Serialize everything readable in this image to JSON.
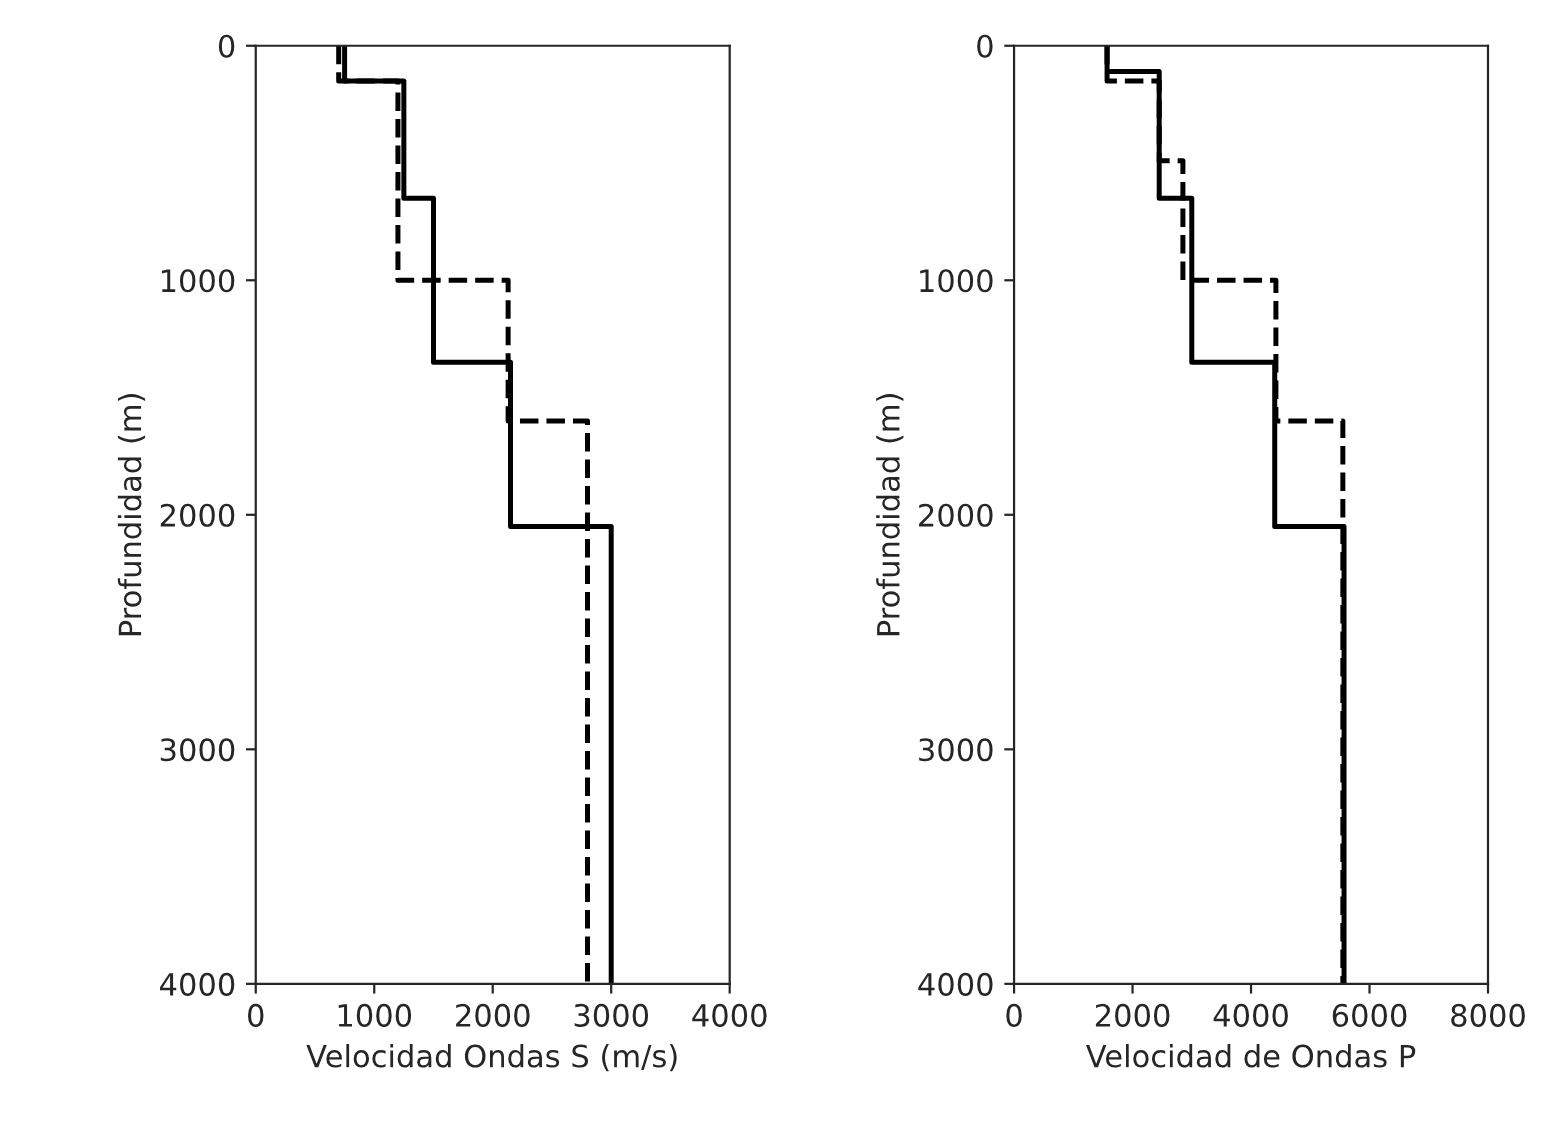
{
  "chart_data": [
    {
      "type": "line",
      "xlabel": "Velocidad Ondas S (m/s)",
      "ylabel": "Profundidad (m)",
      "xlim": [
        0,
        4000
      ],
      "xticks": [
        0,
        1000,
        2000,
        3000,
        4000
      ],
      "ylim": [
        4000,
        0
      ],
      "yticks": [
        0,
        1000,
        2000,
        3000,
        4000
      ],
      "grid": false,
      "marker": "none",
      "series": [
        {
          "color": "#000000",
          "line_style": "solid",
          "x": [
            750,
            750,
            1250,
            1250,
            1500,
            1500,
            2150,
            2150,
            3000,
            3000
          ],
          "values": [
            0,
            150,
            150,
            650,
            650,
            1350,
            1350,
            2050,
            2050,
            4000
          ]
        },
        {
          "color": "#000000",
          "line_style": "dashed",
          "x": [
            700,
            700,
            1200,
            1200,
            2130,
            2130,
            2800,
            2800
          ],
          "values": [
            0,
            150,
            150,
            1000,
            1000,
            1600,
            1600,
            4000
          ]
        }
      ]
    },
    {
      "type": "line",
      "xlabel": "Velocidad de Ondas P",
      "ylabel": "Profundidad (m)",
      "xlim": [
        0,
        8000
      ],
      "xticks": [
        0,
        2000,
        4000,
        6000,
        8000
      ],
      "ylim": [
        4000,
        0
      ],
      "yticks": [
        0,
        1000,
        2000,
        3000,
        4000
      ],
      "grid": false,
      "marker": "none",
      "series": [
        {
          "color": "#000000",
          "line_style": "solid",
          "x": [
            1570,
            1570,
            2450,
            2450,
            3000,
            3000,
            4400,
            4400,
            5570,
            5570
          ],
          "values": [
            0,
            110,
            110,
            650,
            650,
            1350,
            1350,
            2050,
            2050,
            4000
          ]
        },
        {
          "color": "#000000",
          "line_style": "dashed",
          "x": [
            1570,
            1570,
            2450,
            2450,
            2850,
            2850,
            4420,
            4420,
            5550,
            5550
          ],
          "values": [
            0,
            150,
            150,
            490,
            490,
            1000,
            1000,
            1600,
            1600,
            4000
          ]
        }
      ]
    }
  ]
}
